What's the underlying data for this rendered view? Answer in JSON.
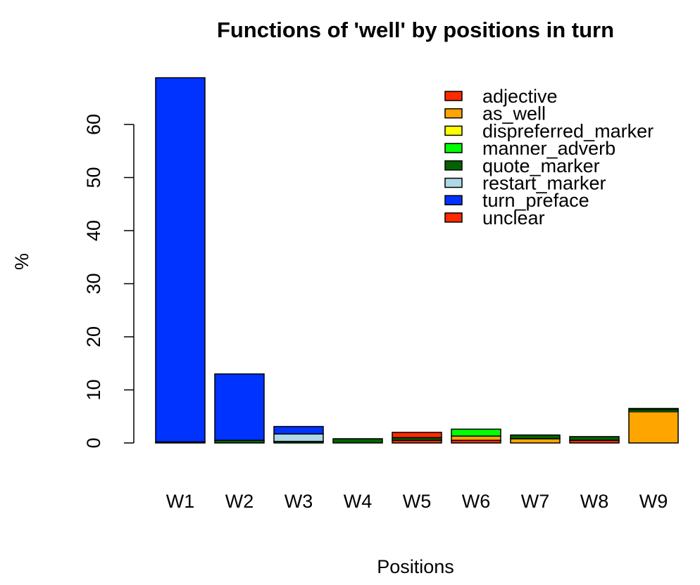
{
  "chart_data": {
    "type": "bar",
    "stacked": true,
    "title": "Functions of 'well' by positions in turn",
    "xlabel": "Positions",
    "ylabel": "%",
    "categories": [
      "W1",
      "W2",
      "W3",
      "W4",
      "W5",
      "W6",
      "W7",
      "W8",
      "W9"
    ],
    "ylim": [
      0,
      69
    ],
    "yticks": [
      0,
      10,
      20,
      30,
      40,
      50,
      60
    ],
    "grid": false,
    "legend_position": "top-right",
    "series": [
      {
        "name": "adjective",
        "color": "#ff2a00",
        "values": [
          0,
          0,
          0,
          0,
          0.5,
          0.5,
          0,
          0.5,
          0
        ]
      },
      {
        "name": "as_well",
        "color": "#ffa500",
        "values": [
          0.2,
          0,
          0,
          0,
          0,
          0.8,
          0.8,
          0,
          5.9
        ]
      },
      {
        "name": "dispreferred_marker",
        "color": "#ffff00",
        "values": [
          0,
          0,
          0,
          0,
          0,
          0,
          0,
          0,
          0
        ]
      },
      {
        "name": "manner_adverb",
        "color": "#00ff00",
        "values": [
          0,
          0,
          0,
          0,
          0,
          1.3,
          0,
          0,
          0.3
        ]
      },
      {
        "name": "quote_marker",
        "color": "#006400",
        "values": [
          0,
          0.5,
          0.3,
          0.8,
          0.5,
          0,
          0.7,
          0.7,
          0.3
        ]
      },
      {
        "name": "restart_marker",
        "color": "#add8e6",
        "values": [
          0,
          0,
          1.4,
          0,
          0,
          0,
          0,
          0,
          0
        ]
      },
      {
        "name": "turn_preface",
        "color": "#0033ff",
        "values": [
          68.6,
          12.5,
          1.4,
          0,
          0,
          0,
          0,
          0,
          0
        ]
      },
      {
        "name": "unclear",
        "color": "#ff2a00",
        "values": [
          0,
          0,
          0,
          0,
          1.0,
          0,
          0,
          0,
          0
        ]
      }
    ]
  }
}
